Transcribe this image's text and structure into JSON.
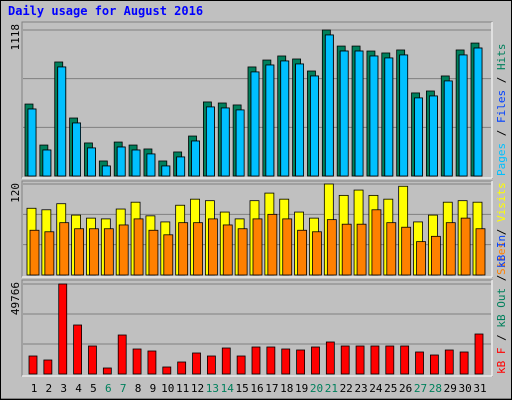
{
  "chart_data": [
    {
      "type": "bar",
      "title": "Daily usage for August 2016",
      "ylim": [
        0,
        1118
      ],
      "yticks": [
        1118
      ],
      "legend": [
        {
          "text": "Pages",
          "color": "#00c0ff"
        },
        {
          "text": "Files",
          "color": "#0040ff"
        },
        {
          "text": "Hits",
          "color": "#00805c"
        }
      ],
      "separator": " / ",
      "series": [
        {
          "color": "#00805c",
          "values": [
            551,
            237,
            873,
            444,
            253,
            115,
            260,
            237,
            207,
            115,
            184,
            306,
            567,
            559,
            544,
            835,
            888,
            919,
            896,
            804,
            1118,
            995,
            995,
            957,
            942,
            965,
            636,
            651,
            766,
            965,
            1018
          ]
        },
        {
          "color": "#0040ff",
          "values": [
            513,
            199,
            835,
            406,
            215,
            77,
            222,
            199,
            169,
            77,
            146,
            268,
            529,
            521,
            506,
            797,
            850,
            881,
            858,
            766,
            1080,
            957,
            957,
            919,
            904,
            927,
            598,
            613,
            728,
            927,
            980
          ]
        },
        {
          "color": "#00c0ff",
          "values": [
            513,
            199,
            835,
            406,
            215,
            77,
            222,
            199,
            169,
            77,
            146,
            268,
            529,
            521,
            506,
            797,
            850,
            881,
            858,
            766,
            1080,
            957,
            957,
            919,
            904,
            927,
            598,
            613,
            728,
            927,
            980
          ]
        }
      ]
    },
    {
      "type": "bar",
      "ylim": [
        0,
        120
      ],
      "yticks": [
        120
      ],
      "legend": [
        {
          "text": "Sites",
          "color": "#ff8000"
        },
        {
          "text": "Visits",
          "color": "#ffff00"
        }
      ],
      "separator": " / ",
      "series": [
        {
          "color": "#ffff00",
          "values": [
            88,
            86,
            94,
            79,
            75,
            74,
            87,
            96,
            78,
            70,
            92,
            100,
            98,
            83,
            74,
            98,
            108,
            100,
            83,
            75,
            120,
            105,
            112,
            105,
            100,
            117,
            70,
            79,
            96,
            98,
            96
          ]
        },
        {
          "color": "#ff8000",
          "values": [
            59,
            57,
            69,
            61,
            61,
            61,
            66,
            74,
            59,
            53,
            69,
            69,
            74,
            66,
            61,
            74,
            80,
            74,
            59,
            57,
            73,
            67,
            67,
            86,
            69,
            63,
            44,
            51,
            69,
            75,
            61
          ]
        }
      ]
    },
    {
      "type": "bar",
      "ylim": [
        0,
        49766
      ],
      "yticks": [
        49766
      ],
      "legend": [
        {
          "text": "kB F",
          "color": "#ff0000"
        },
        {
          "text": "kB Out",
          "color": "#00805c"
        },
        {
          "text": "kB In",
          "color": "#0040ff"
        }
      ],
      "separator": " / ",
      "series": [
        {
          "color": "#ff0000",
          "values": [
            9953,
            7741,
            49766,
            27092,
            15482,
            3318,
            21562,
            13824,
            12719,
            3871,
            6635,
            11612,
            9953,
            14377,
            9953,
            14930,
            14930,
            13824,
            13271,
            14930,
            17695,
            15482,
            15482,
            15482,
            15482,
            15482,
            12166,
            10506,
            13271,
            12166,
            22115
          ]
        }
      ],
      "categories": [
        "1",
        "2",
        "3",
        "4",
        "5",
        "6",
        "7",
        "8",
        "9",
        "10",
        "11",
        "12",
        "13",
        "14",
        "15",
        "16",
        "17",
        "18",
        "19",
        "20",
        "21",
        "22",
        "23",
        "24",
        "25",
        "26",
        "27",
        "28",
        "29",
        "30",
        "31"
      ],
      "weekend_indices": [
        5,
        6,
        12,
        13,
        19,
        20,
        26,
        27
      ],
      "weekend_color": "#00805c"
    }
  ]
}
